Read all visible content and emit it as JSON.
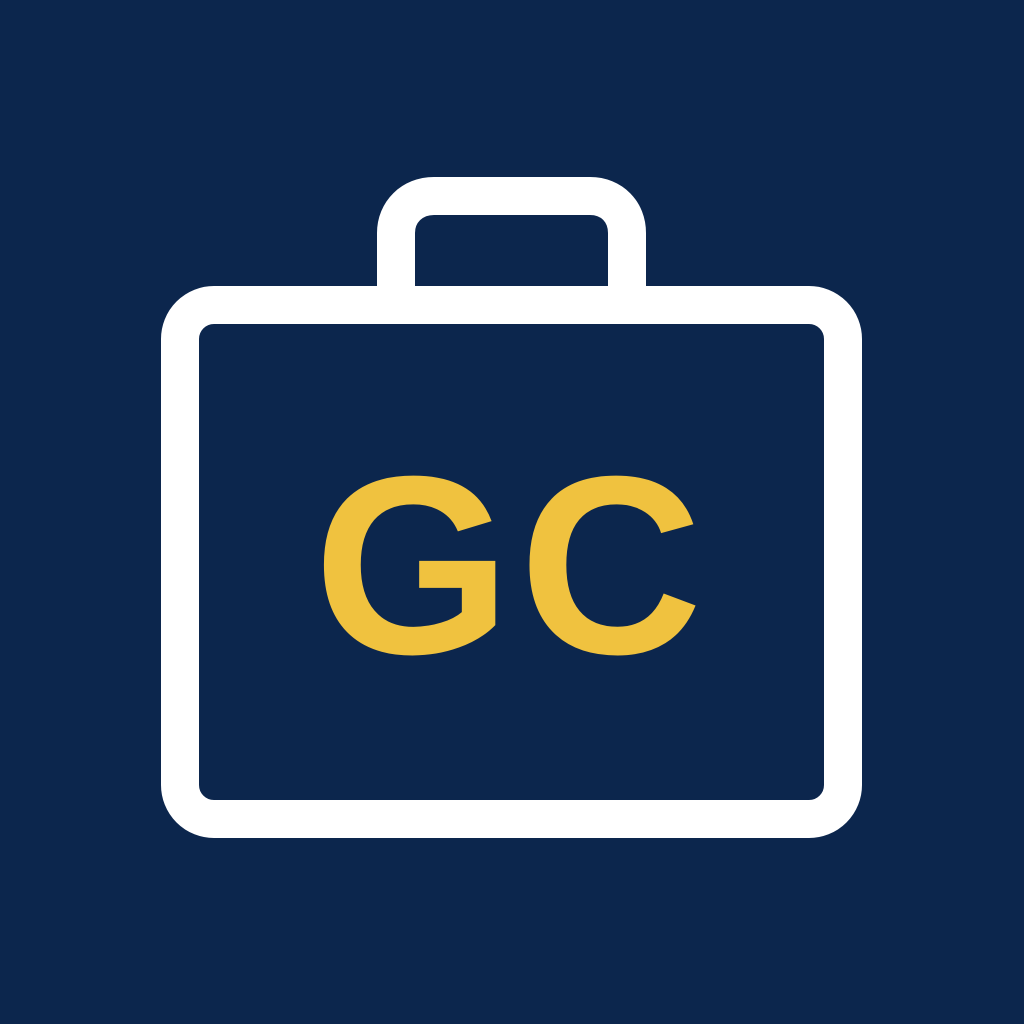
{
  "logo": {
    "icon": "briefcase-icon",
    "monogram": "GC",
    "colors": {
      "background": "#0c264d",
      "outline": "#ffffff",
      "monogram": "#f0c23f"
    }
  }
}
